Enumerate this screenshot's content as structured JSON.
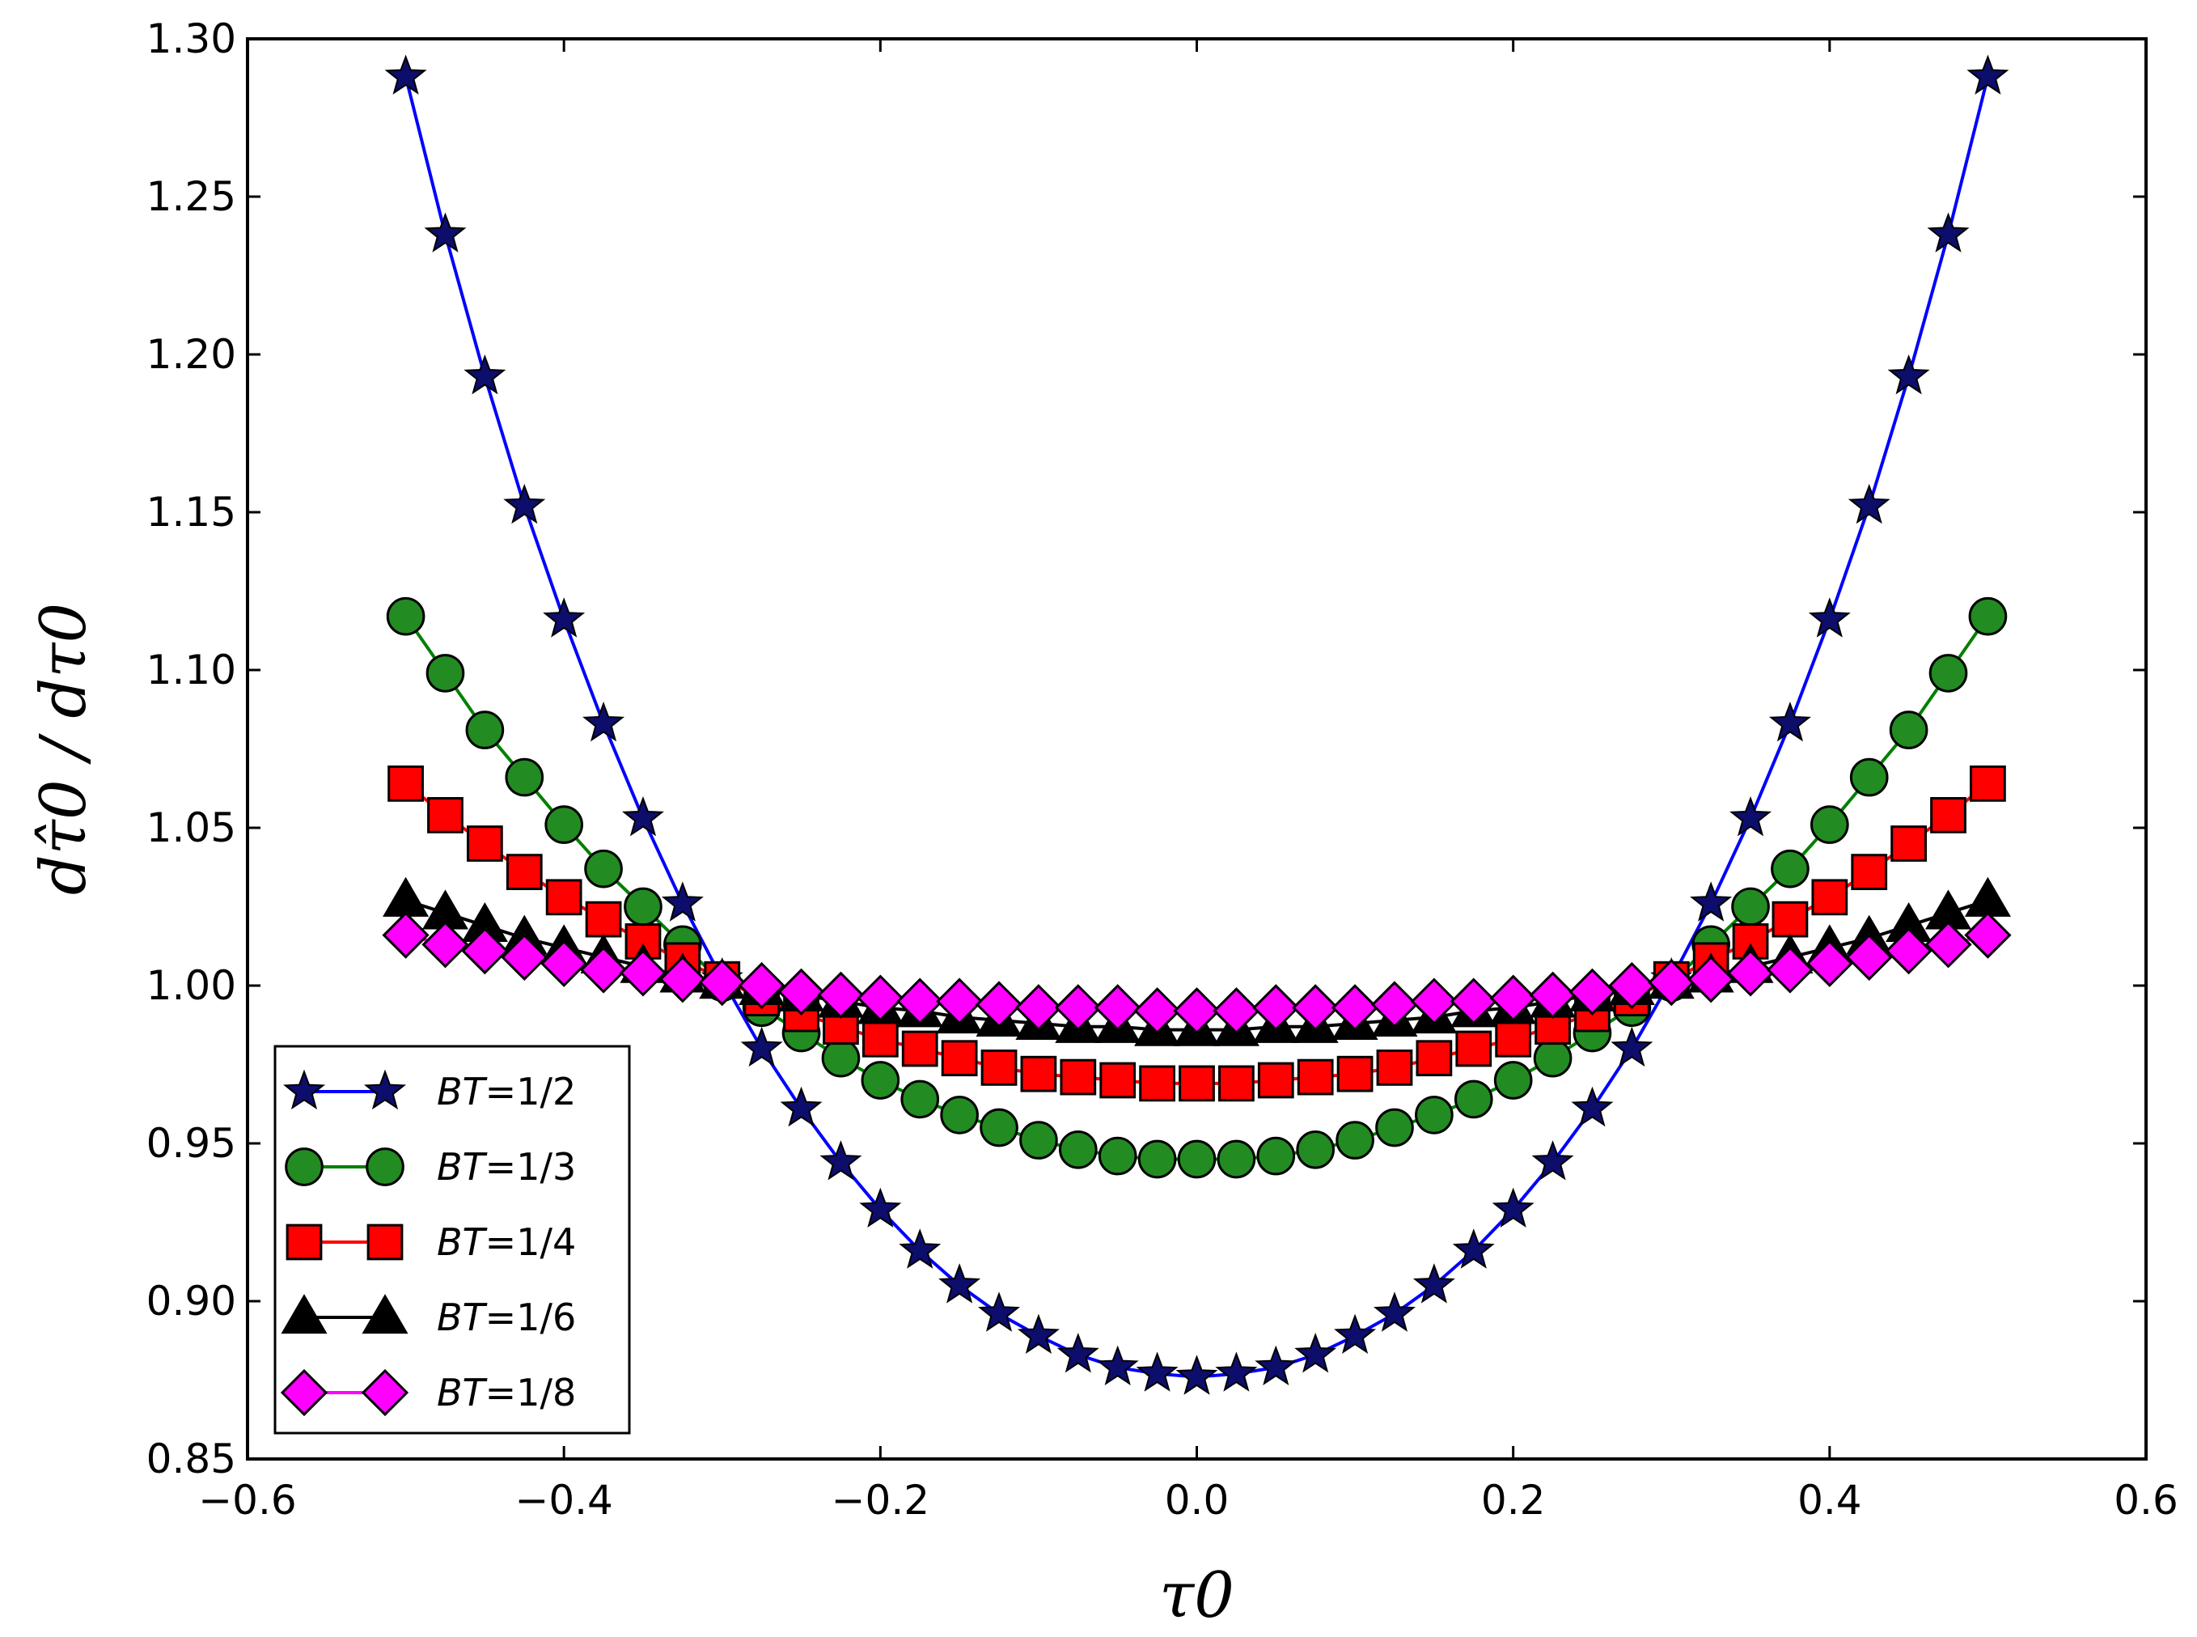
{
  "chart_data": {
    "type": "line",
    "title": "",
    "xlabel": "τ0",
    "ylabel": "dτ̂0 / dτ0",
    "xlim": [
      -0.6,
      0.6
    ],
    "ylim": [
      0.85,
      1.3
    ],
    "xticks": [
      -0.6,
      -0.4,
      -0.2,
      0.0,
      0.2,
      0.4,
      0.6
    ],
    "xtick_labels": [
      "−0.6",
      "−0.4",
      "−0.2",
      "0.0",
      "0.2",
      "0.4",
      "0.6"
    ],
    "yticks": [
      0.85,
      0.9,
      0.95,
      1.0,
      1.05,
      1.1,
      1.15,
      1.2,
      1.25,
      1.3
    ],
    "ytick_labels": [
      "0.85",
      "0.90",
      "0.95",
      "1.00",
      "1.05",
      "1.10",
      "1.15",
      "1.20",
      "1.25",
      "1.30"
    ],
    "grid": false,
    "legend_position": "bottom-left",
    "x": [
      -0.5,
      -0.475,
      -0.45,
      -0.425,
      -0.4,
      -0.375,
      -0.35,
      -0.325,
      -0.3,
      -0.275,
      -0.25,
      -0.225,
      -0.2,
      -0.175,
      -0.15,
      -0.125,
      -0.1,
      -0.075,
      -0.05,
      -0.025,
      0.0,
      0.025,
      0.05,
      0.075,
      0.1,
      0.125,
      0.15,
      0.175,
      0.2,
      0.225,
      0.25,
      0.275,
      0.3,
      0.325,
      0.35,
      0.375,
      0.4,
      0.425,
      0.45,
      0.475,
      0.5
    ],
    "series": [
      {
        "name": "BT=1/2",
        "legend_prefix": "BT",
        "legend_value": "=1/2",
        "color": "#0000ff",
        "marker": "star",
        "marker_color": "#0d0d6b",
        "values": [
          1.288,
          1.238,
          1.193,
          1.152,
          1.116,
          1.083,
          1.053,
          1.026,
          1.002,
          0.98,
          0.961,
          0.944,
          0.929,
          0.916,
          0.905,
          0.896,
          0.889,
          0.883,
          0.879,
          0.877,
          0.876,
          0.877,
          0.879,
          0.883,
          0.889,
          0.896,
          0.905,
          0.916,
          0.929,
          0.944,
          0.961,
          0.98,
          1.002,
          1.026,
          1.053,
          1.083,
          1.116,
          1.152,
          1.193,
          1.238,
          1.288
        ]
      },
      {
        "name": "BT=1/3",
        "legend_prefix": "BT",
        "legend_value": "=1/3",
        "color": "#008000",
        "marker": "circle",
        "marker_color": "#228b22",
        "values": [
          1.117,
          1.099,
          1.081,
          1.066,
          1.051,
          1.037,
          1.025,
          1.013,
          1.001,
          0.993,
          0.985,
          0.977,
          0.97,
          0.964,
          0.959,
          0.955,
          0.951,
          0.948,
          0.946,
          0.945,
          0.945,
          0.945,
          0.946,
          0.948,
          0.951,
          0.955,
          0.959,
          0.964,
          0.97,
          0.977,
          0.985,
          0.993,
          1.001,
          1.013,
          1.025,
          1.037,
          1.051,
          1.066,
          1.081,
          1.099,
          1.117
        ]
      },
      {
        "name": "BT=1/4",
        "legend_prefix": "BT",
        "legend_value": "=1/4",
        "color": "#ff0000",
        "marker": "square",
        "marker_color": "#ff0000",
        "values": [
          1.064,
          1.054,
          1.045,
          1.036,
          1.028,
          1.021,
          1.014,
          1.008,
          1.002,
          0.996,
          0.991,
          0.987,
          0.983,
          0.98,
          0.977,
          0.974,
          0.972,
          0.971,
          0.97,
          0.969,
          0.969,
          0.969,
          0.97,
          0.971,
          0.972,
          0.974,
          0.977,
          0.98,
          0.983,
          0.987,
          0.991,
          0.996,
          1.002,
          1.008,
          1.014,
          1.021,
          1.028,
          1.036,
          1.045,
          1.054,
          1.064
        ]
      },
      {
        "name": "BT=1/6",
        "legend_prefix": "BT",
        "legend_value": "=1/6",
        "color": "#000000",
        "marker": "triangle",
        "marker_color": "#000000",
        "values": [
          1.027,
          1.023,
          1.019,
          1.015,
          1.012,
          1.009,
          1.006,
          1.003,
          1.001,
          0.999,
          0.997,
          0.995,
          0.993,
          0.992,
          0.99,
          0.989,
          0.988,
          0.987,
          0.987,
          0.986,
          0.986,
          0.986,
          0.987,
          0.987,
          0.988,
          0.989,
          0.99,
          0.992,
          0.993,
          0.995,
          0.997,
          0.999,
          1.001,
          1.003,
          1.006,
          1.009,
          1.012,
          1.015,
          1.019,
          1.023,
          1.027
        ]
      },
      {
        "name": "BT=1/8",
        "legend_prefix": "BT",
        "legend_value": "=1/8",
        "color": "#ff00ff",
        "marker": "diamond",
        "marker_color": "#ff00ff",
        "values": [
          1.016,
          1.013,
          1.011,
          1.009,
          1.007,
          1.005,
          1.004,
          1.002,
          1.001,
          1.0,
          0.998,
          0.997,
          0.996,
          0.995,
          0.995,
          0.994,
          0.993,
          0.993,
          0.993,
          0.992,
          0.992,
          0.992,
          0.993,
          0.993,
          0.993,
          0.994,
          0.995,
          0.995,
          0.996,
          0.997,
          0.998,
          1.0,
          1.001,
          1.002,
          1.004,
          1.005,
          1.007,
          1.009,
          1.011,
          1.013,
          1.016
        ]
      }
    ]
  }
}
